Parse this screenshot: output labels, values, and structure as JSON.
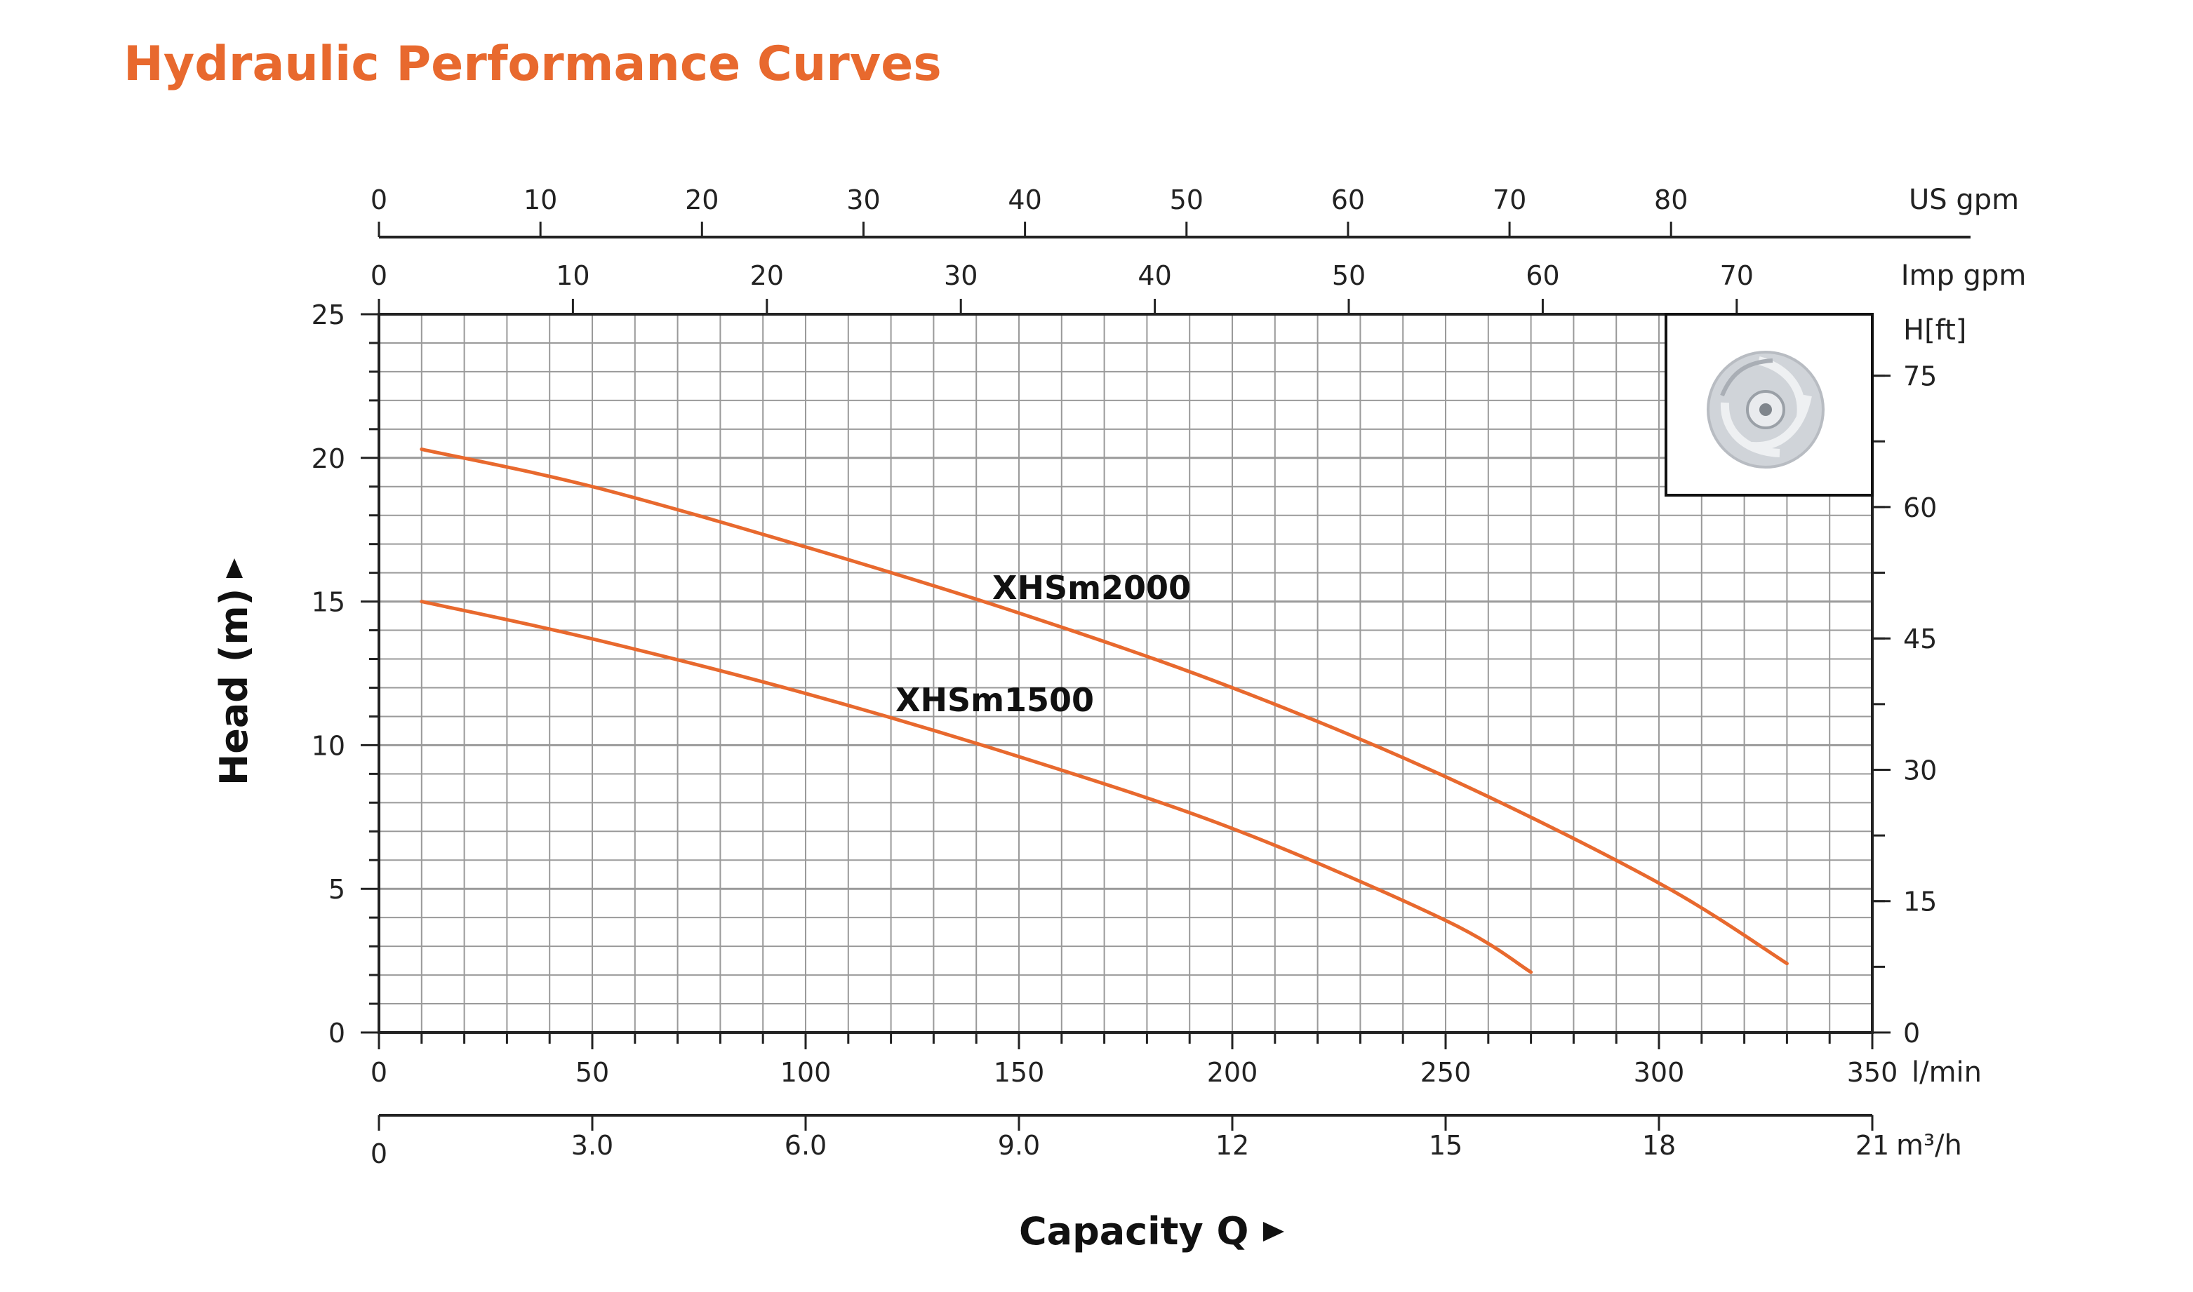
{
  "title": "Hydraulic Performance Curves",
  "colors": {
    "title": "#e8692e",
    "curve": "#e8692e",
    "grid": "#9a9a9a",
    "axis": "#222222"
  },
  "chart_data": {
    "type": "line",
    "title": "Hydraulic Performance Curves",
    "xlabel": "Capacity Q",
    "ylabel": "Head (m)",
    "x_unit": "l/min",
    "xlim": [
      0,
      350
    ],
    "ylim": [
      0,
      25
    ],
    "grid": true,
    "x_ticks": [
      "0",
      "50",
      "100",
      "150",
      "200",
      "250",
      "300",
      "350"
    ],
    "y_ticks": [
      "0",
      "5",
      "10",
      "15",
      "20",
      "25"
    ],
    "secondary_axes": {
      "us_gpm": {
        "unit": "US gpm",
        "ticks": [
          "0",
          "10",
          "20",
          "30",
          "40",
          "50",
          "60",
          "70",
          "80"
        ]
      },
      "imp_gpm": {
        "unit": "Imp gpm",
        "ticks": [
          "0",
          "10",
          "20",
          "30",
          "40",
          "50",
          "60",
          "70"
        ]
      },
      "m3h": {
        "unit": "m³/h",
        "ticks": [
          "0",
          "3.0",
          "6.0",
          "9.0",
          "12",
          "15",
          "18",
          "21"
        ]
      },
      "head_ft": {
        "unit": "H[ft]",
        "ticks": [
          "0",
          "15",
          "30",
          "45",
          "60",
          "75"
        ]
      }
    },
    "series": [
      {
        "name": "XHSm2000",
        "x": [
          10,
          50,
          100,
          150,
          200,
          250,
          300,
          330
        ],
        "y": [
          20.3,
          19.0,
          16.9,
          14.6,
          12.0,
          8.9,
          5.2,
          2.4
        ]
      },
      {
        "name": "XHSm1500",
        "x": [
          10,
          50,
          100,
          150,
          200,
          250,
          270
        ],
        "y": [
          15.0,
          13.7,
          11.8,
          9.6,
          7.1,
          3.9,
          2.1
        ]
      }
    ]
  },
  "decorations": {
    "impeller_icon": "impeller-icon"
  }
}
